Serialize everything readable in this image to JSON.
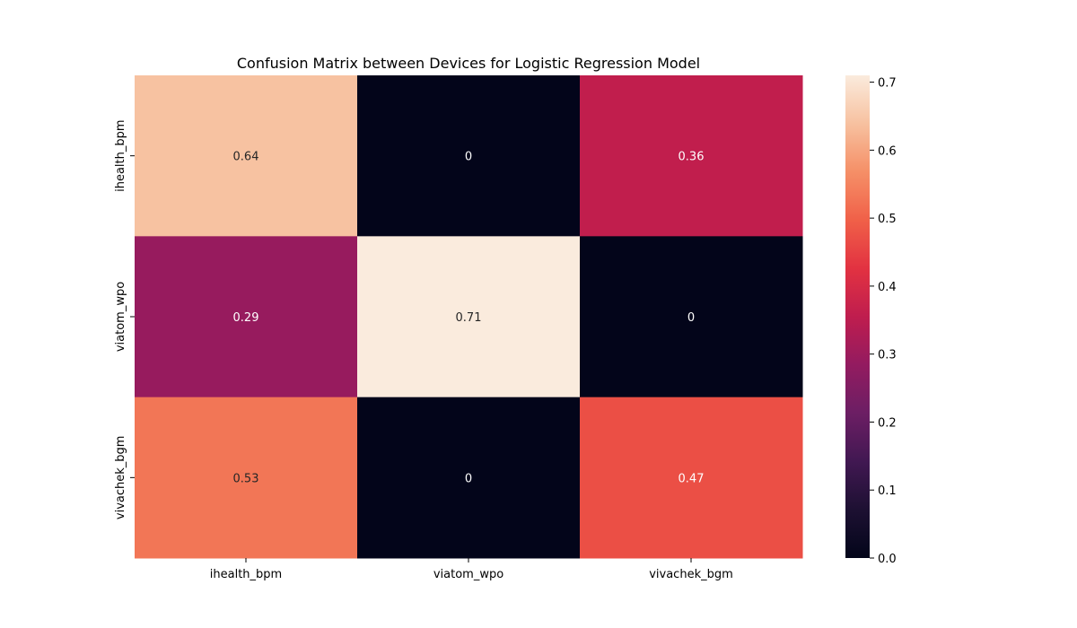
{
  "chart_data": {
    "type": "heatmap",
    "title": "Confusion Matrix between Devices for Logistic Regression Model",
    "xlabel": "",
    "ylabel": "",
    "x_categories": [
      "ihealth_bpm",
      "viatom_wpo",
      "vivachek_bgm"
    ],
    "y_categories": [
      "ihealth_bpm",
      "viatom_wpo",
      "vivachek_bgm"
    ],
    "values": [
      [
        0.64,
        0,
        0.36
      ],
      [
        0.29,
        0.71,
        0
      ],
      [
        0.53,
        0,
        0.47
      ]
    ],
    "cell_labels": [
      [
        "0.64",
        "0",
        "0.36"
      ],
      [
        "0.29",
        "0.71",
        "0"
      ],
      [
        "0.53",
        "0",
        "0.47"
      ]
    ],
    "colorbar": {
      "range": [
        0,
        0.71
      ],
      "ticks": [
        0.0,
        0.1,
        0.2,
        0.3,
        0.4,
        0.5,
        0.6,
        0.7
      ],
      "tick_labels": [
        "0.0",
        "0.1",
        "0.2",
        "0.3",
        "0.4",
        "0.5",
        "0.6",
        "0.7"
      ],
      "colormap": "rocket",
      "placement": "right"
    },
    "grid": false
  }
}
